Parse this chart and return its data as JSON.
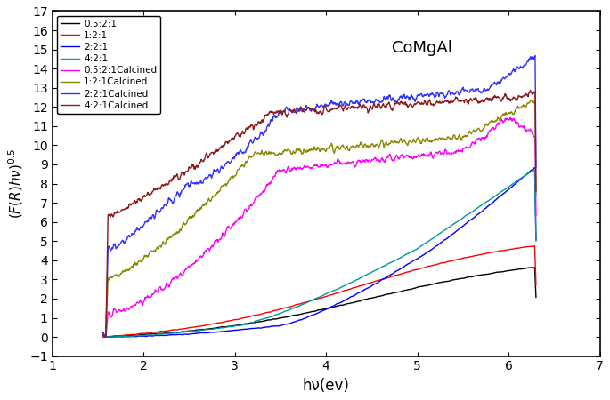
{
  "title": "CoMgAl",
  "xlabel": "hν(ev)",
  "ylabel": "(F(R)hν)^{0.5}",
  "xlim": [
    1.0,
    7.0
  ],
  "ylim": [
    -1,
    17
  ],
  "yticks": [
    -1,
    0,
    1,
    2,
    3,
    4,
    5,
    6,
    7,
    8,
    9,
    10,
    11,
    12,
    13,
    14,
    15,
    16,
    17
  ],
  "xticks": [
    1,
    2,
    3,
    4,
    5,
    6,
    7
  ],
  "series": [
    {
      "label": "0.5:2:1",
      "color": "#000000"
    },
    {
      "label": "1:2:1",
      "color": "#ff0000"
    },
    {
      "label": "2:2:1",
      "color": "#0000ff"
    },
    {
      "label": "4:2:1",
      "color": "#009999"
    },
    {
      "label": "0.5:2:1Calcined",
      "color": "#ff00ff"
    },
    {
      "label": "1:2:1Calcined",
      "color": "#888800"
    },
    {
      "label": "2:2:1Calcined",
      "color": "#3333ff"
    },
    {
      "label": "4:2:1Calcined",
      "color": "#8b1a1a"
    }
  ],
  "background_color": "#ffffff"
}
